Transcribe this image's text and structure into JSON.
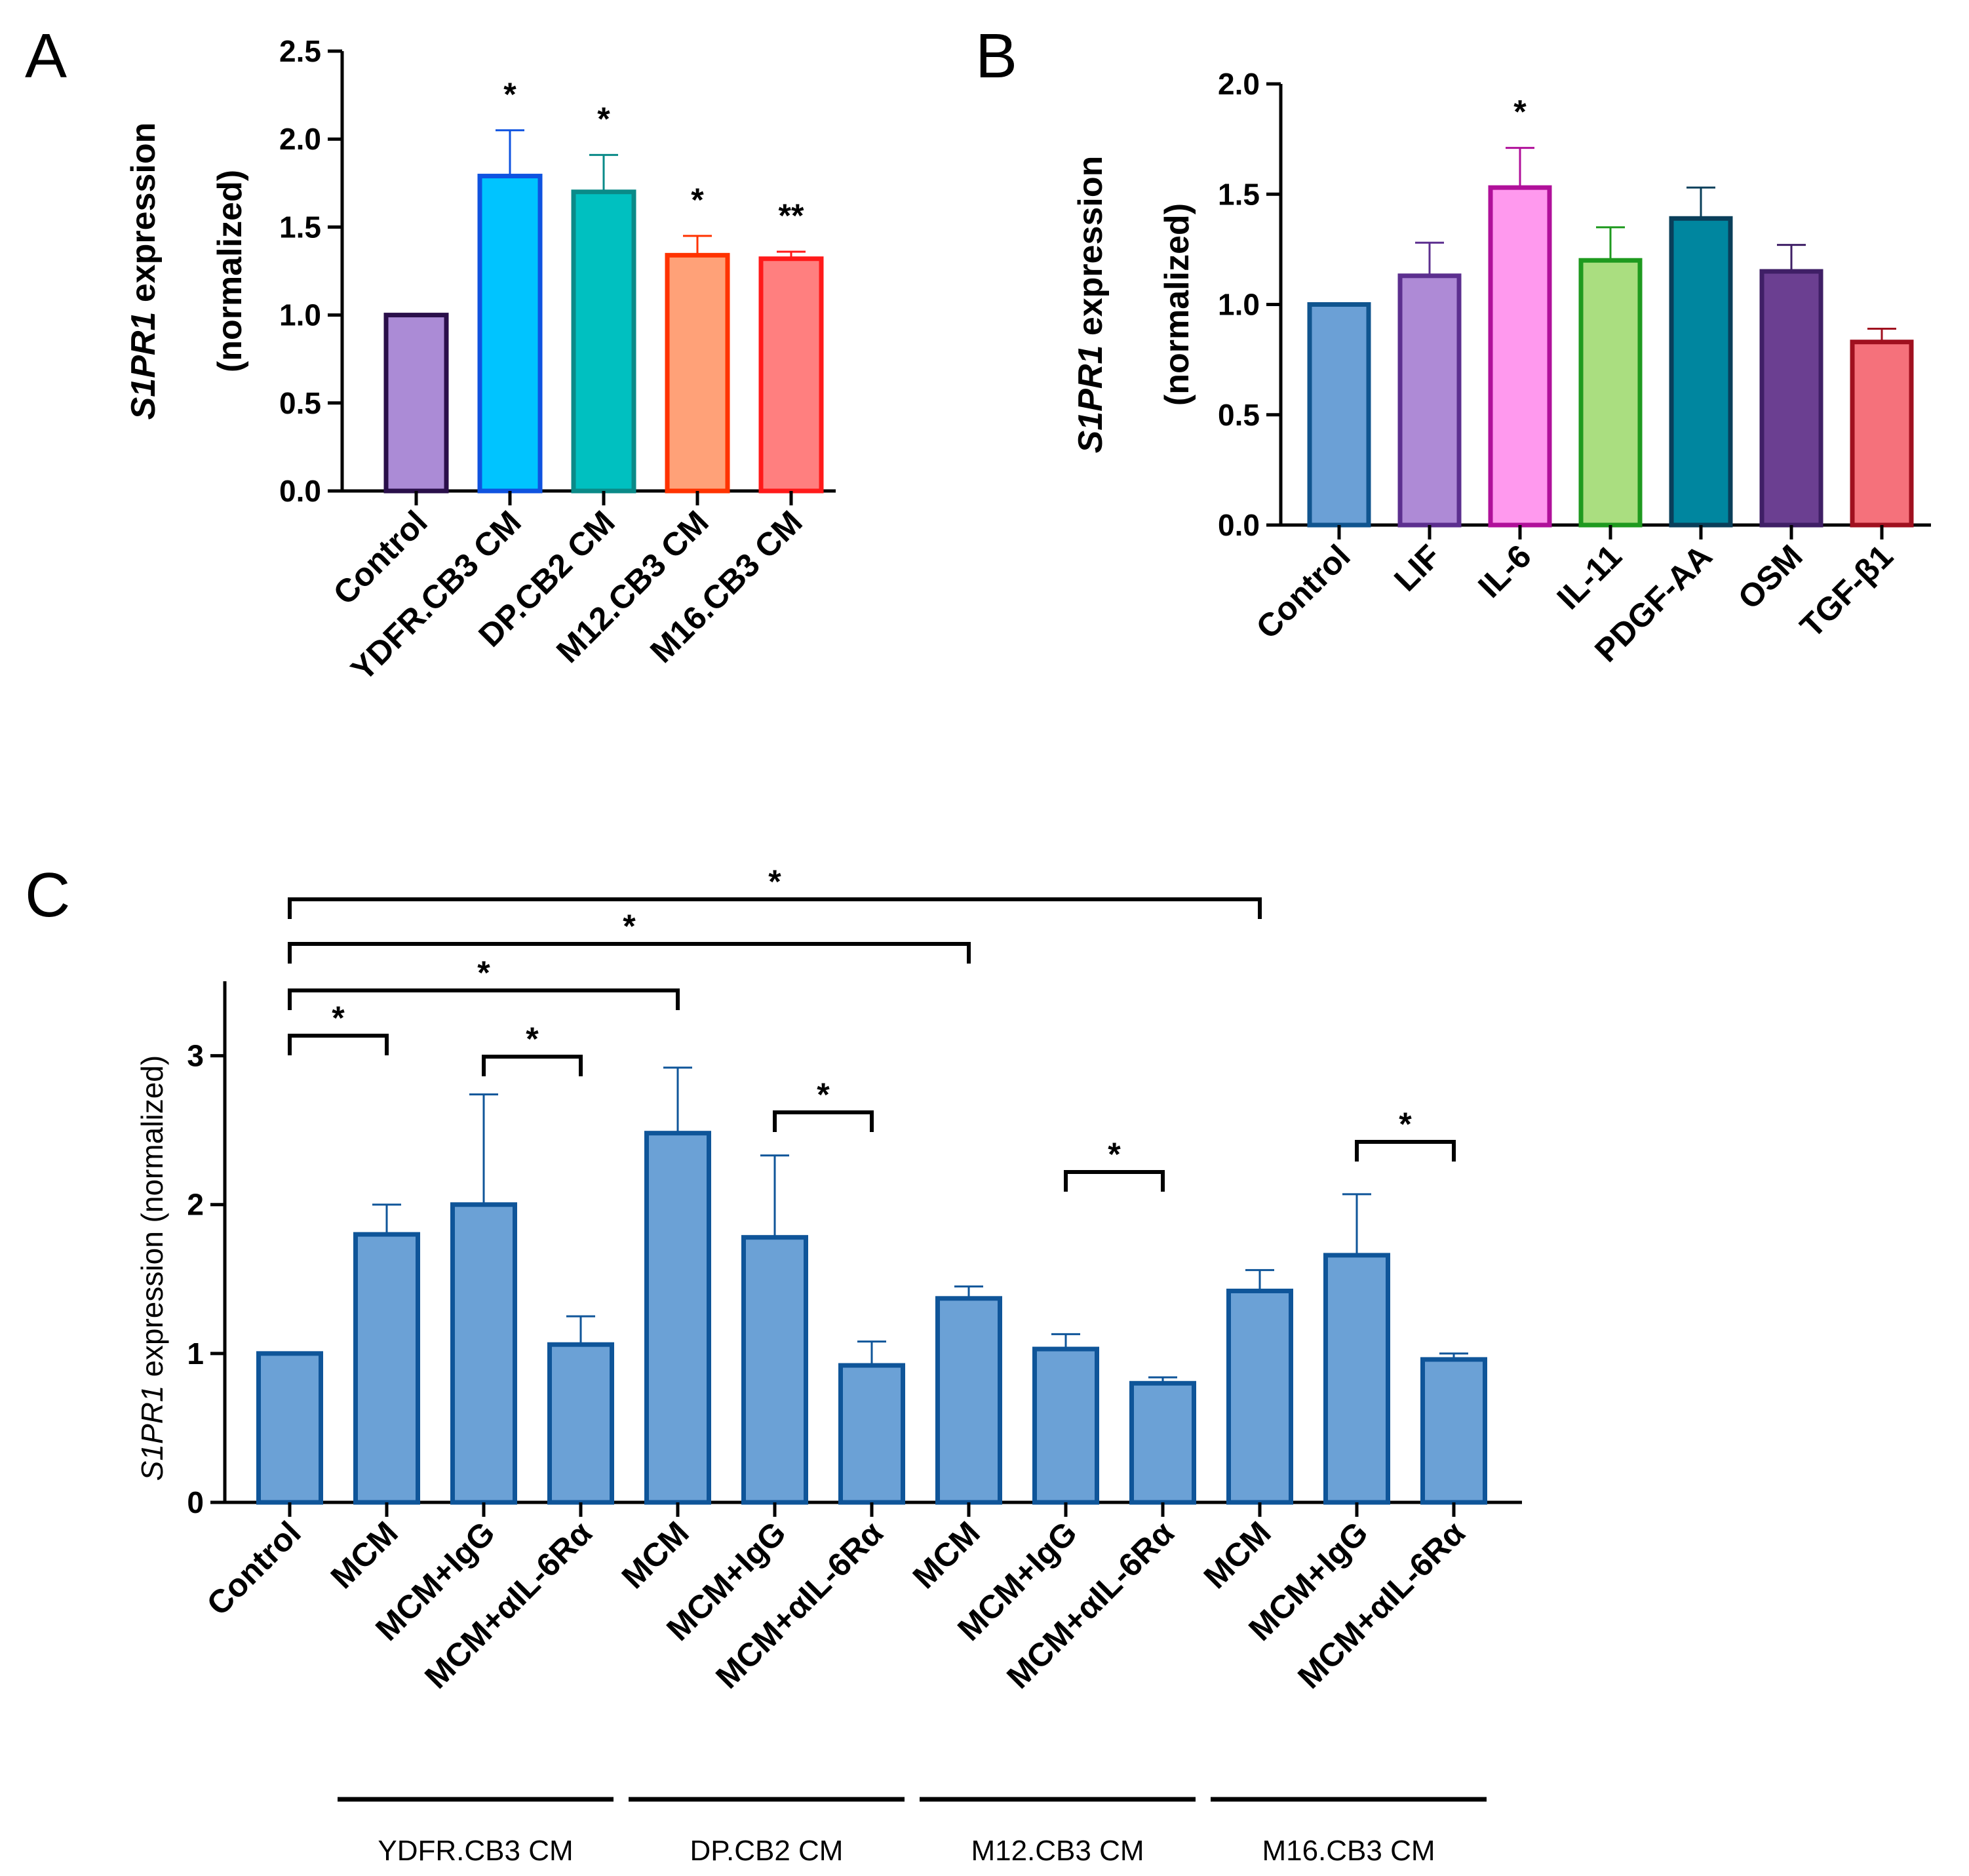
{
  "chart_data": [
    {
      "panel": "A",
      "type": "bar",
      "ylabel_gene": "S1PR1",
      "ylabel_rest": " expression",
      "ylabel_line2": "(normalized)",
      "ylim": [
        0,
        2.5
      ],
      "yticks": [
        "0.0",
        "0.5",
        "1.0",
        "1.5",
        "2.0",
        "2.5"
      ],
      "categories": [
        "Control",
        "YDFR.CB3 CM",
        "DP.CB2 CM",
        "M12.CB3 CM",
        "M16.CB3 CM"
      ],
      "values": [
        1.0,
        1.79,
        1.7,
        1.34,
        1.32
      ],
      "errors": [
        0.0,
        0.26,
        0.21,
        0.11,
        0.04
      ],
      "significance": [
        "",
        "*",
        "*",
        "*",
        "**"
      ],
      "fills": [
        "#ab8bd6",
        "#00c4ff",
        "#00c0c0",
        "#ffa178",
        "#ff7f7f"
      ],
      "edges": [
        "#2a0f4a",
        "#0f53e0",
        "#0a8a88",
        "#ff3300",
        "#ff1a1a"
      ]
    },
    {
      "panel": "B",
      "type": "bar",
      "ylabel_gene": "S1PR1",
      "ylabel_rest": " expression",
      "ylabel_line2": "(normalized)",
      "ylim": [
        0,
        2.0
      ],
      "yticks": [
        "0.0",
        "0.5",
        "1.0",
        "1.5",
        "2.0"
      ],
      "categories": [
        "Control",
        "LIF",
        "IL-6",
        "IL-11",
        "PDGF-AA",
        "OSM",
        "TGF-β1"
      ],
      "values": [
        1.0,
        1.13,
        1.53,
        1.2,
        1.39,
        1.15,
        0.83
      ],
      "errors": [
        0.0,
        0.15,
        0.18,
        0.15,
        0.14,
        0.12,
        0.06
      ],
      "significance": [
        "",
        "",
        "*",
        "",
        "",
        "",
        ""
      ],
      "fills": [
        "#6ba0d6",
        "#ae8ad6",
        "#ff99ee",
        "#aade80",
        "#00869f",
        "#6b3f91",
        "#f5717b"
      ],
      "edges": [
        "#10558f",
        "#5c2f8f",
        "#b0109a",
        "#1f9a1f",
        "#0a3f5a",
        "#3f1f66",
        "#a0101f"
      ]
    },
    {
      "panel": "C",
      "type": "bar",
      "ylabel_gene": "S1PR1",
      "ylabel_rest": " expression (normalized)",
      "ylim": [
        0,
        3.5
      ],
      "yticks": [
        "0",
        "1",
        "2",
        "3"
      ],
      "categories": [
        "Control",
        "MCM",
        "MCM+IgG",
        "MCM+αIL-6Rα",
        "MCM",
        "MCM+IgG",
        "MCM+αIL-6Rα",
        "MCM",
        "MCM+IgG",
        "MCM+αIL-6Rα",
        "MCM",
        "MCM+IgG",
        "MCM+αIL-6Rα"
      ],
      "values": [
        1.0,
        1.8,
        2.0,
        1.06,
        2.48,
        1.78,
        0.92,
        1.37,
        1.03,
        0.8,
        1.42,
        1.66,
        0.96
      ],
      "errors": [
        0.0,
        0.2,
        0.74,
        0.19,
        0.44,
        0.55,
        0.16,
        0.08,
        0.1,
        0.04,
        0.14,
        0.41,
        0.04
      ],
      "fill": "#6ba1d6",
      "edge": "#0f5599",
      "comparisons": [
        {
          "from": 0,
          "to": 1,
          "label": "*"
        },
        {
          "from": 2,
          "to": 3,
          "label": "*"
        },
        {
          "from": 5,
          "to": 6,
          "label": "*"
        },
        {
          "from": 8,
          "to": 9,
          "label": "*"
        },
        {
          "from": 11,
          "to": 12,
          "label": "*"
        },
        {
          "from": 0,
          "to": 4,
          "label": "*"
        },
        {
          "from": 0,
          "to": 7,
          "label": "*"
        },
        {
          "from": 0,
          "to": 10,
          "label": "*"
        }
      ],
      "groups": [
        {
          "label": "YDFR.CB3 CM",
          "first": 1,
          "last": 3
        },
        {
          "label": "DP.CB2 CM",
          "first": 4,
          "last": 6
        },
        {
          "label": "M12.CB3 CM",
          "first": 7,
          "last": 9
        },
        {
          "label": "M16.CB3 CM",
          "first": 10,
          "last": 12
        }
      ]
    }
  ]
}
